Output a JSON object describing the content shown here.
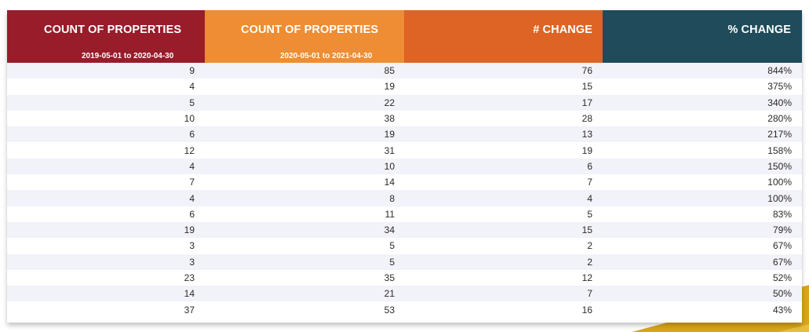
{
  "table": {
    "headers": [
      "COUNT OF PROPERTIES",
      "COUNT OF PROPERTIES",
      "# CHANGE",
      "% CHANGE"
    ],
    "subheaders": [
      "2019-05-01 to 2020-04-30",
      "2020-05-01 to 2021-04-30",
      "",
      ""
    ],
    "header_colors": [
      "#981c2a",
      "#ee8d33",
      "#dd6424",
      "#1f4b5a"
    ],
    "rows": [
      [
        "9",
        "85",
        "76",
        "844%"
      ],
      [
        "4",
        "19",
        "15",
        "375%"
      ],
      [
        "5",
        "22",
        "17",
        "340%"
      ],
      [
        "10",
        "38",
        "28",
        "280%"
      ],
      [
        "6",
        "19",
        "13",
        "217%"
      ],
      [
        "12",
        "31",
        "19",
        "158%"
      ],
      [
        "4",
        "10",
        "6",
        "150%"
      ],
      [
        "7",
        "14",
        "7",
        "100%"
      ],
      [
        "4",
        "8",
        "4",
        "100%"
      ],
      [
        "6",
        "11",
        "5",
        "83%"
      ],
      [
        "19",
        "34",
        "15",
        "79%"
      ],
      [
        "3",
        "5",
        "2",
        "67%"
      ],
      [
        "3",
        "5",
        "2",
        "67%"
      ],
      [
        "23",
        "35",
        "12",
        "52%"
      ],
      [
        "14",
        "21",
        "7",
        "50%"
      ],
      [
        "37",
        "53",
        "16",
        "43%"
      ]
    ]
  }
}
